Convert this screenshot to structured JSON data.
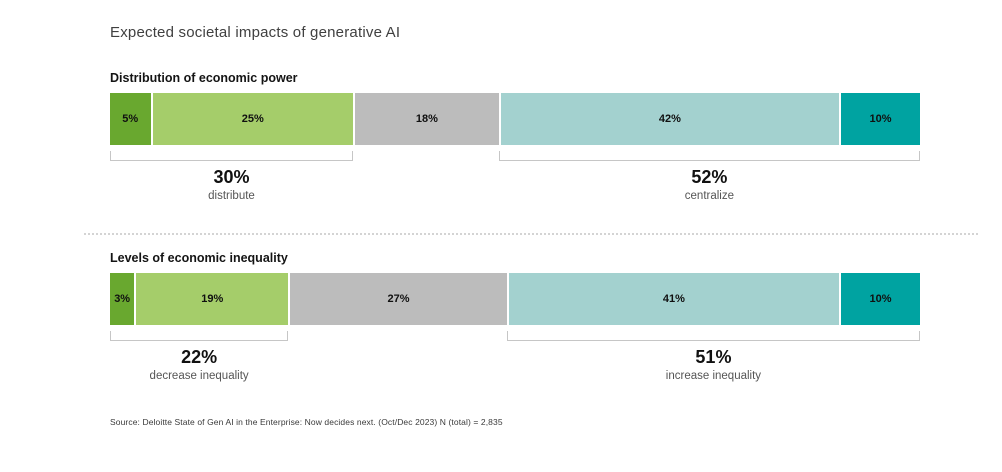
{
  "page": {
    "title": "Expected societal impacts of generative AI",
    "source_note": "Source: Deloitte State of Gen AI in the Enterprise: Now decides next. (Oct/Dec 2023) N (total) = 2,835"
  },
  "colors": {
    "strong_green": "#69a82f",
    "light_green": "#a5cd6a",
    "neutral_gray": "#bcbcbc",
    "light_teal": "#a3d1cf",
    "teal": "#00a3a1",
    "bracket": "#c6c6c6"
  },
  "chart_data": [
    {
      "type": "bar",
      "title": "Distribution of economic power",
      "segments": [
        {
          "label": "5%",
          "value": 5,
          "color_key": "strong_green"
        },
        {
          "label": "25%",
          "value": 25,
          "color_key": "light_green"
        },
        {
          "label": "18%",
          "value": 18,
          "color_key": "neutral_gray"
        },
        {
          "label": "42%",
          "value": 42,
          "color_key": "light_teal"
        },
        {
          "label": "10%",
          "value": 10,
          "color_key": "teal"
        }
      ],
      "brackets": [
        {
          "from": 0,
          "to": 30,
          "pct": "30%",
          "label": "distribute"
        },
        {
          "from": 48,
          "to": 100,
          "pct": "52%",
          "label": "centralize"
        }
      ]
    },
    {
      "type": "bar",
      "title": "Levels of economic inequality",
      "segments": [
        {
          "label": "3%",
          "value": 3,
          "color_key": "strong_green"
        },
        {
          "label": "19%",
          "value": 19,
          "color_key": "light_green"
        },
        {
          "label": "27%",
          "value": 27,
          "color_key": "neutral_gray"
        },
        {
          "label": "41%",
          "value": 41,
          "color_key": "light_teal"
        },
        {
          "label": "10%",
          "value": 10,
          "color_key": "teal"
        }
      ],
      "brackets": [
        {
          "from": 0,
          "to": 22,
          "pct": "22%",
          "label": "decrease inequality"
        },
        {
          "from": 49,
          "to": 100,
          "pct": "51%",
          "label": "increase inequality"
        }
      ]
    }
  ]
}
